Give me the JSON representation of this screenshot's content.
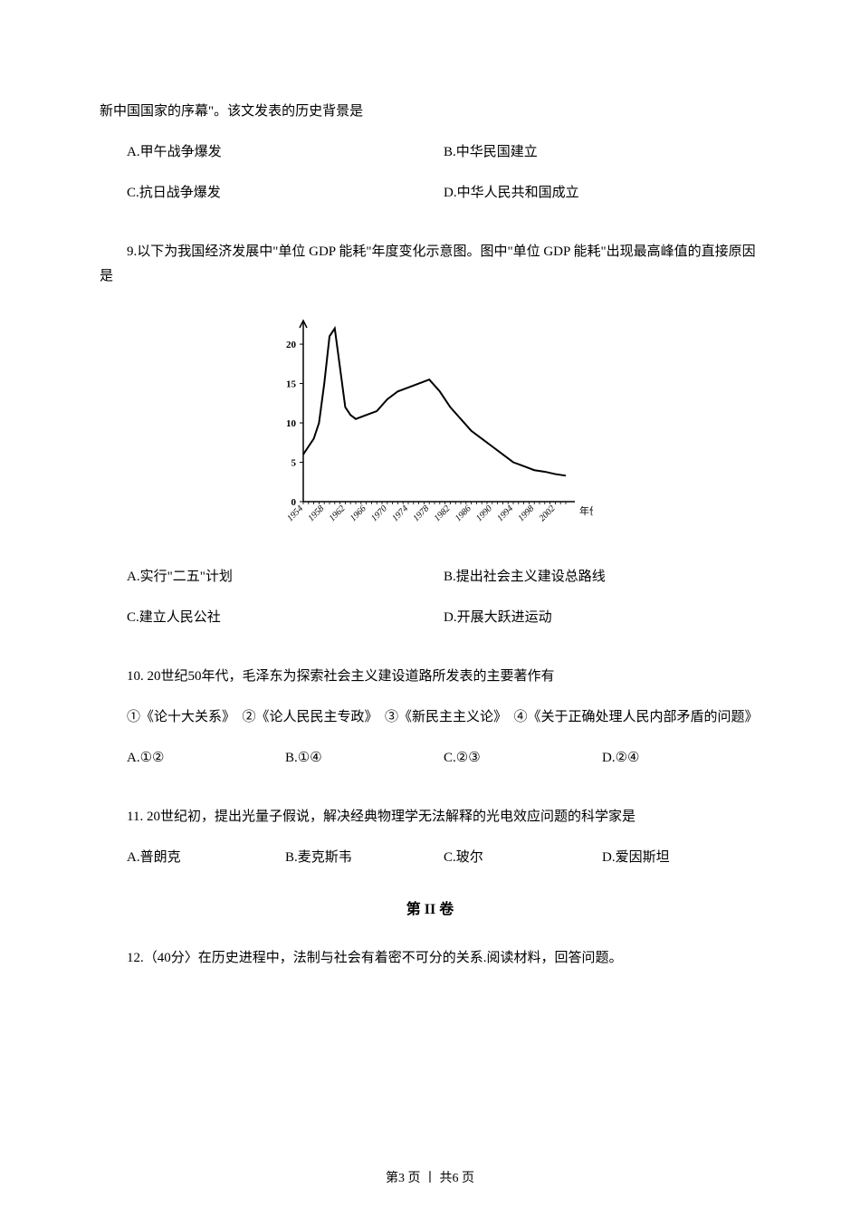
{
  "context_line": "新中国国家的序幕\"。该文发表的历史背景是",
  "q8_options": {
    "a": "A.甲午战争爆发",
    "b": "B.中华民国建立",
    "c": "C.抗日战争爆发",
    "d": "D.中华人民共和国成立"
  },
  "q9": {
    "text": "9.以下为我国经济发展中\"单位 GDP 能耗\"年度变化示意图。图中\"单位 GDP 能耗\"出现最高峰值的直接原因是",
    "options": {
      "a": "A.实行\"二五\"计划",
      "b": "B.提出社会主义建设总路线",
      "c": "C.建立人民公社",
      "d": "D.开展大跃进运动"
    }
  },
  "q10": {
    "text": "10. 20世纪50年代，毛泽东为探索社会主义建设道路所发表的主要著作有",
    "items": "①《论十大关系》　②《论人民民主专政》　③《新民主主义论》　④《关于正确处理人民内部矛盾的问题》",
    "options": {
      "a": "A.①②",
      "b": "B.①④",
      "c": "C.②③",
      "d": "D.②④"
    }
  },
  "q11": {
    "text": "11. 20世纪初，提出光量子假说，解决经典物理学无法解释的光电效应问题的科学家是",
    "options": {
      "a": "A.普朗克",
      "b": "B.麦克斯韦",
      "c": "C.玻尔",
      "d": "D.爱因斯坦"
    }
  },
  "section2_title": "第 II 卷",
  "q12": {
    "text": "12.（40分〉在历史进程中，法制与社会有着密不可分的关系.阅读材料，回答问题。"
  },
  "footer": "第3 页 丨 共6 页",
  "chart": {
    "type": "line",
    "ylim": [
      0,
      23
    ],
    "yticks": [
      0,
      5,
      10,
      15,
      20
    ],
    "xlabels": [
      "1954",
      "1958",
      "1962",
      "1966",
      "1970",
      "1974",
      "1978",
      "1982",
      "1986",
      "1990",
      "1994",
      "1998",
      "2002"
    ],
    "xaxis_label": "年份",
    "line_color": "#000000",
    "axis_color": "#000000",
    "background_color": "#ffffff",
    "line_width": 2,
    "font_size": 11,
    "data_points": [
      {
        "x": 1954,
        "y": 6
      },
      {
        "x": 1955,
        "y": 7
      },
      {
        "x": 1956,
        "y": 8
      },
      {
        "x": 1957,
        "y": 10
      },
      {
        "x": 1958,
        "y": 15
      },
      {
        "x": 1959,
        "y": 21
      },
      {
        "x": 1960,
        "y": 22
      },
      {
        "x": 1961,
        "y": 17
      },
      {
        "x": 1962,
        "y": 12
      },
      {
        "x": 1963,
        "y": 11
      },
      {
        "x": 1964,
        "y": 10.5
      },
      {
        "x": 1966,
        "y": 11
      },
      {
        "x": 1968,
        "y": 11.5
      },
      {
        "x": 1970,
        "y": 13
      },
      {
        "x": 1972,
        "y": 14
      },
      {
        "x": 1974,
        "y": 14.5
      },
      {
        "x": 1976,
        "y": 15
      },
      {
        "x": 1978,
        "y": 15.5
      },
      {
        "x": 1980,
        "y": 14
      },
      {
        "x": 1982,
        "y": 12
      },
      {
        "x": 1984,
        "y": 10.5
      },
      {
        "x": 1986,
        "y": 9
      },
      {
        "x": 1988,
        "y": 8
      },
      {
        "x": 1990,
        "y": 7
      },
      {
        "x": 1992,
        "y": 6
      },
      {
        "x": 1994,
        "y": 5
      },
      {
        "x": 1996,
        "y": 4.5
      },
      {
        "x": 1998,
        "y": 4
      },
      {
        "x": 2000,
        "y": 3.8
      },
      {
        "x": 2002,
        "y": 3.5
      },
      {
        "x": 2004,
        "y": 3.3
      }
    ]
  }
}
